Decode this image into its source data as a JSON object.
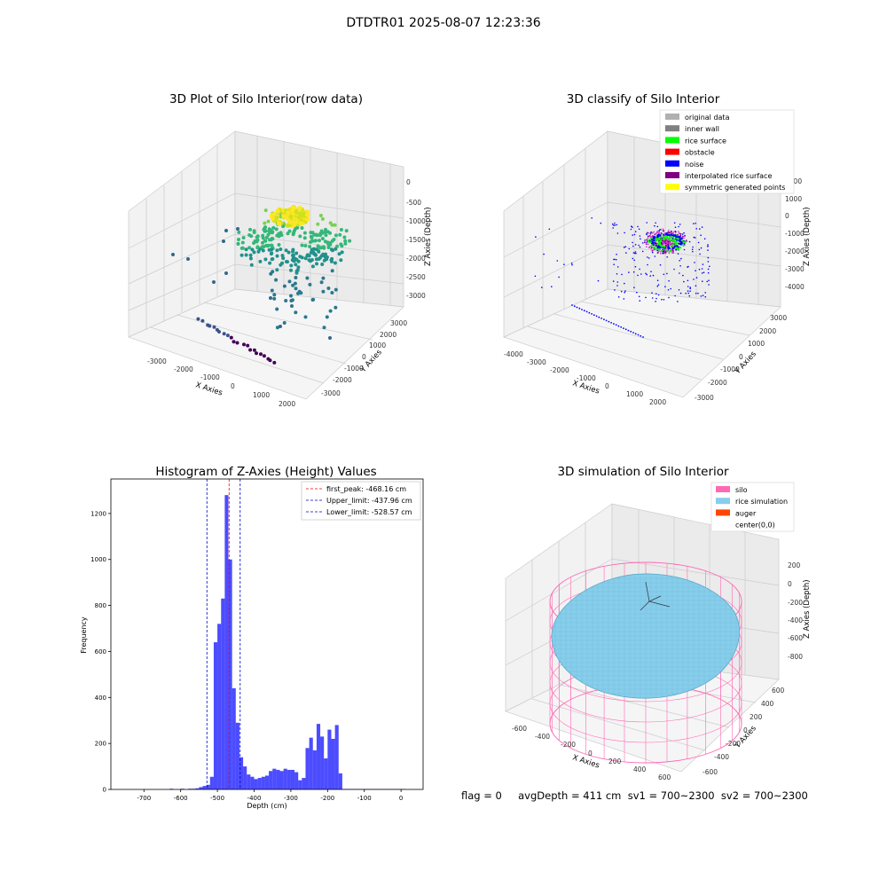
{
  "suptitle": "DTDTR01 2025-08-07 12:23:36",
  "panel1": {
    "title": "3D Plot of Silo Interior(row data)",
    "xlabel": "X Axies",
    "ylabel": "Y Axies",
    "zlabel": "Z Axies (Depth)",
    "xticks": [
      "-3000",
      "-2000",
      "-1000",
      "0",
      "1000",
      "2000"
    ],
    "yticks": [
      "3000",
      "2000",
      "1000",
      "0",
      "-1000",
      "-2000",
      "-3000"
    ],
    "zticks": [
      "0",
      "-500",
      "-1000",
      "-1500",
      "-2000",
      "-2500",
      "-3000"
    ]
  },
  "panel2": {
    "title": "3D classify of Silo Interior",
    "xlabel": "X Axies",
    "ylabel": "Y Axies",
    "zlabel": "Z Axies (Depth)",
    "xticks": [
      "-4000",
      "-3000",
      "-2000",
      "-1000",
      "0",
      "1000",
      "2000"
    ],
    "yticks": [
      "3000",
      "2000",
      "1000",
      "0",
      "-1000",
      "-2000",
      "-3000"
    ],
    "zticks": [
      "2000",
      "1000",
      "0",
      "-1000",
      "-2000",
      "-3000",
      "-4000"
    ],
    "legend": [
      {
        "label": "original data",
        "color": "#b0b0b0"
      },
      {
        "label": "inner wall",
        "color": "#808080"
      },
      {
        "label": "rice surface",
        "color": "#00ff00"
      },
      {
        "label": "obstacle",
        "color": "#ff0000"
      },
      {
        "label": "noise",
        "color": "#0000ff"
      },
      {
        "label": "interpolated rice surface",
        "color": "#800080"
      },
      {
        "label": "symmetric generated points",
        "color": "#ffff00"
      }
    ]
  },
  "panel3": {
    "title": "Histogram of Z-Axies (Height) Values",
    "legend": [
      {
        "label": "first_peak: -468.16 cm",
        "color": "#ff0000"
      },
      {
        "label": "Upper_limit: -437.96 cm",
        "color": "#0000cc"
      },
      {
        "label": "Lower_limit: -528.57 cm",
        "color": "#0000cc"
      }
    ]
  },
  "panel4": {
    "title": "3D simulation of Silo Interior",
    "xlabel": "X Axies",
    "ylabel": "Y Axies",
    "zlabel": "Z Axies (Depth)",
    "xticks": [
      "-600",
      "-400",
      "-200",
      "0",
      "200",
      "400",
      "600"
    ],
    "yticks": [
      "600",
      "400",
      "200",
      "0",
      "-200",
      "-400",
      "-600"
    ],
    "zticks": [
      "200",
      "0",
      "-200",
      "-400",
      "-600",
      "-800"
    ],
    "legend": [
      {
        "label": "silo",
        "color": "#ff69b4"
      },
      {
        "label": "rice simulation",
        "color": "#87ceeb"
      },
      {
        "label": "auger",
        "color": "#ff4500"
      },
      {
        "label": "center(0,0)",
        "color": "#ffffff"
      }
    ]
  },
  "status": "flag = 0     avgDepth = 411 cm  sv1 = 700~2300  sv2 = 700~2300",
  "chart_data": [
    {
      "type": "scatter",
      "title": "3D Plot of Silo Interior(row data)",
      "xlabel": "X Axies",
      "ylabel": "Y Axies",
      "zlabel": "Z Axies (Depth)",
      "xlim": [
        -3500,
        2500
      ],
      "ylim": [
        -3500,
        3500
      ],
      "zlim": [
        -3200,
        100
      ]
    },
    {
      "type": "scatter",
      "title": "3D classify of Silo Interior",
      "xlabel": "X Axies",
      "ylabel": "Y Axies",
      "zlabel": "Z Axies (Depth)",
      "xlim": [
        -4200,
        2500
      ],
      "ylim": [
        -3500,
        3500
      ],
      "zlim": [
        -4500,
        2000
      ],
      "series": [
        {
          "name": "original data"
        },
        {
          "name": "inner wall"
        },
        {
          "name": "rice surface"
        },
        {
          "name": "obstacle"
        },
        {
          "name": "noise"
        },
        {
          "name": "interpolated rice surface"
        },
        {
          "name": "symmetric generated points"
        }
      ]
    },
    {
      "type": "bar",
      "title": "Histogram of Z-Axies (Height) Values",
      "xlabel": "Depth (cm)",
      "ylabel": "Frequency",
      "xlim": [
        -790,
        60
      ],
      "ylim": [
        0,
        1350
      ],
      "xticks": [
        -700,
        -600,
        -500,
        -400,
        -300,
        -200,
        -100,
        0
      ],
      "yticks": [
        0,
        200,
        400,
        600,
        800,
        1000,
        1200
      ],
      "bin_width": 10,
      "bin_starts": [
        -630,
        -600,
        -580,
        -570,
        -560,
        -550,
        -540,
        -530,
        -520,
        -510,
        -500,
        -490,
        -480,
        -470,
        -460,
        -450,
        -440,
        -430,
        -420,
        -410,
        -400,
        -390,
        -380,
        -370,
        -360,
        -350,
        -340,
        -330,
        -320,
        -310,
        -300,
        -290,
        -280,
        -270,
        -260,
        -250,
        -240,
        -230,
        -220,
        -210,
        -200,
        -190,
        -180,
        -170,
        -160,
        -150,
        -140,
        -130,
        -120,
        -110,
        -100,
        -90,
        -80,
        -70,
        -60,
        -50,
        -40,
        -30,
        -20,
        -10,
        0
      ],
      "values": [
        3,
        3,
        3,
        3,
        5,
        10,
        15,
        20,
        55,
        640,
        720,
        830,
        1280,
        1000,
        440,
        290,
        140,
        100,
        65,
        55,
        45,
        50,
        55,
        60,
        80,
        90,
        85,
        80,
        90,
        85,
        85,
        75,
        40,
        50,
        180,
        225,
        170,
        285,
        230,
        135,
        260,
        220,
        280,
        70,
        2,
        2,
        2,
        2,
        2,
        2,
        2,
        2,
        2,
        2,
        2,
        2,
        2,
        2,
        2,
        2,
        2
      ],
      "vlines": [
        {
          "name": "first_peak: -468.16 cm",
          "x": -468.16,
          "color": "#ff0000"
        },
        {
          "name": "Upper_limit: -437.96 cm",
          "x": -437.96,
          "color": "#0000cc"
        },
        {
          "name": "Lower_limit: -528.57 cm",
          "x": -528.57,
          "color": "#0000cc"
        }
      ]
    },
    {
      "type": "area",
      "title": "3D simulation of Silo Interior",
      "xlabel": "X Axies",
      "ylabel": "Y Axies",
      "zlabel": "Z Axies (Depth)",
      "xlim": [
        -700,
        700
      ],
      "ylim": [
        -700,
        700
      ],
      "zlim": [
        -950,
        350
      ],
      "series": [
        {
          "name": "silo"
        },
        {
          "name": "rice simulation"
        },
        {
          "name": "auger"
        },
        {
          "name": "center(0,0)"
        }
      ]
    }
  ]
}
